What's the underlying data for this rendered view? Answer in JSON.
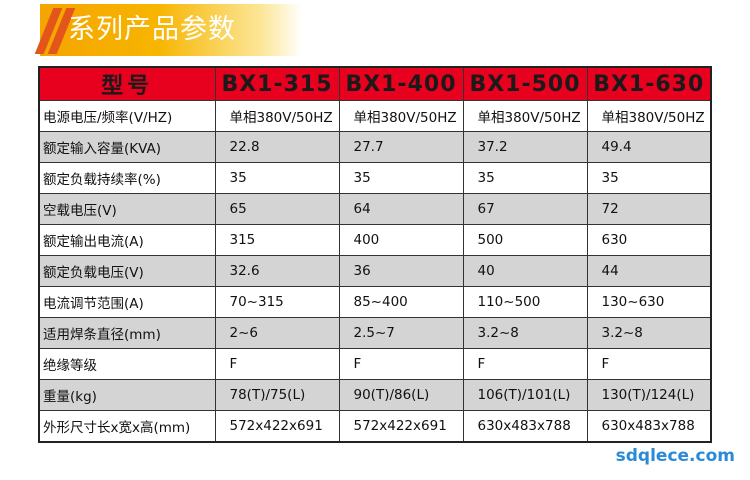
{
  "header": {
    "title": "系列产品参数"
  },
  "table": {
    "headers": [
      "型号",
      "BX1-315",
      "BX1-400",
      "BX1-500",
      "BX1-630"
    ],
    "rows": [
      {
        "label": "电源电压/频率(V/HZ)",
        "values": [
          "单相380V/50HZ",
          "单相380V/50HZ",
          "单相380V/50HZ",
          "单相380V/50HZ"
        ]
      },
      {
        "label": "额定输入容量(KVA)",
        "values": [
          "22.8",
          "27.7",
          "37.2",
          "49.4"
        ]
      },
      {
        "label": "额定负载持续率(%)",
        "values": [
          "35",
          "35",
          "35",
          "35"
        ]
      },
      {
        "label": "空载电压(V)",
        "values": [
          "65",
          "64",
          "67",
          "72"
        ]
      },
      {
        "label": "额定输出电流(A)",
        "values": [
          "315",
          "400",
          "500",
          "630"
        ]
      },
      {
        "label": "额定负载电压(V)",
        "values": [
          "32.6",
          "36",
          "40",
          "44"
        ]
      },
      {
        "label": "电流调节范围(A)",
        "values": [
          "70~315",
          "85~400",
          "110~500",
          "130~630"
        ]
      },
      {
        "label": "适用焊条直径(mm)",
        "values": [
          "2~6",
          "2.5~7",
          "3.2~8",
          "3.2~8"
        ]
      },
      {
        "label": "绝缘等级",
        "values": [
          "F",
          "F",
          "F",
          "F"
        ]
      },
      {
        "label": "重量(kg)",
        "values": [
          "78(T)/75(L)",
          "90(T)/86(L)",
          "106(T)/101(L)",
          "130(T)/124(L)"
        ]
      },
      {
        "label": "外形尺寸长x宽x高(mm)",
        "values": [
          "572x422x691",
          "572x422x691",
          "630x483x788",
          "630x483x788"
        ]
      }
    ]
  },
  "watermark": {
    "text": "sdqlece.com"
  },
  "colors": {
    "header_row": "#e8001f",
    "banner": "#f7b500",
    "stripe": "#e4551b",
    "shaded_row": "#d4d4d4"
  }
}
